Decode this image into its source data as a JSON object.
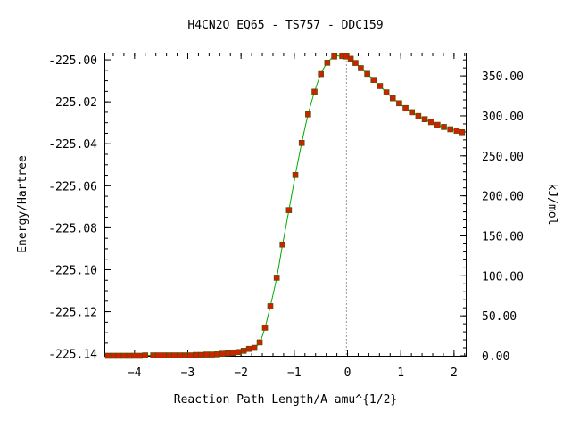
{
  "chart_data": {
    "type": "scatter",
    "title": "H4CN2O   EQ65 - TS757 - DDC159",
    "xlabel": "Reaction Path Length/A amu^{1/2}",
    "ylabel": "Energy/Hartree",
    "y2label": "kJ/mol",
    "xlim": [
      -4.55,
      2.22
    ],
    "ylim": [
      -225.141,
      -224.997
    ],
    "y2lim": [
      0,
      378
    ],
    "x_ticks": [
      -4,
      -3,
      -2,
      -1,
      0,
      1,
      2
    ],
    "x_tick_labels": [
      "−4",
      "−3",
      "−2",
      "−1",
      "0",
      "1",
      "2"
    ],
    "y_ticks": [
      -225.14,
      -225.12,
      -225.1,
      -225.08,
      -225.06,
      -225.04,
      -225.02,
      -225.0
    ],
    "y_tick_labels": [
      "-225.14",
      "-225.12",
      "-225.10",
      "-225.08",
      "-225.06",
      "-225.04",
      "-225.02",
      "-225.00"
    ],
    "y2_ticks": [
      0,
      50,
      100,
      150,
      200,
      250,
      300,
      350
    ],
    "y2_tick_labels": [
      "0.00",
      "50.00",
      "100.00",
      "150.00",
      "200.00",
      "250.00",
      "300.00",
      "350.00"
    ],
    "ts_marker_x": -0.02,
    "grid": false,
    "legend": "none",
    "colors": {
      "points": "#cc2200",
      "curve": "#00aa00",
      "ts_line": "#999999"
    },
    "series": [
      {
        "x": [
          -4.5,
          -4.4,
          -4.3,
          -4.2,
          -4.1,
          -4.0,
          -3.9,
          -3.8,
          -3.65,
          -3.55,
          -3.45,
          -3.35,
          -3.25,
          -3.15,
          -3.05,
          -2.95,
          -2.85,
          -2.75,
          -2.65,
          -2.55,
          -2.45,
          -2.35,
          -2.25,
          -2.15,
          -2.05,
          -1.95,
          -1.85,
          -1.75,
          -1.65,
          -1.55,
          -1.45,
          -1.33,
          -1.22,
          -1.1,
          -0.98,
          -0.86,
          -0.74,
          -0.62,
          -0.5,
          -0.38,
          -0.25,
          -0.1,
          -0.02,
          0.06,
          0.15,
          0.25,
          0.37,
          0.49,
          0.61,
          0.73,
          0.85,
          0.97,
          1.09,
          1.21,
          1.33,
          1.45,
          1.57,
          1.69,
          1.81,
          1.93,
          2.05,
          2.15
        ],
        "y": [
          -225.141,
          -225.141,
          -225.141,
          -225.141,
          -225.141,
          -225.141,
          -225.141,
          -225.1408,
          -225.1408,
          -225.1408,
          -225.1408,
          -225.1408,
          -225.1408,
          -225.1408,
          -225.1408,
          -225.1408,
          -225.1406,
          -225.1406,
          -225.1404,
          -225.1404,
          -225.1403,
          -225.14,
          -225.1398,
          -225.1396,
          -225.1392,
          -225.1386,
          -225.1377,
          -225.1372,
          -225.1346,
          -225.1276,
          -225.1174,
          -225.1038,
          -225.088,
          -225.0716,
          -225.0549,
          -225.0396,
          -225.026,
          -225.0152,
          -225.0068,
          -225.0014,
          -224.9984,
          -224.9982,
          -224.9984,
          -224.9995,
          -225.0015,
          -225.004,
          -225.0067,
          -225.0096,
          -225.0125,
          -225.0155,
          -225.0183,
          -225.0207,
          -225.023,
          -225.025,
          -225.0268,
          -225.0283,
          -225.0297,
          -225.031,
          -225.032,
          -225.0331,
          -225.0338,
          -225.0345
        ]
      }
    ]
  }
}
